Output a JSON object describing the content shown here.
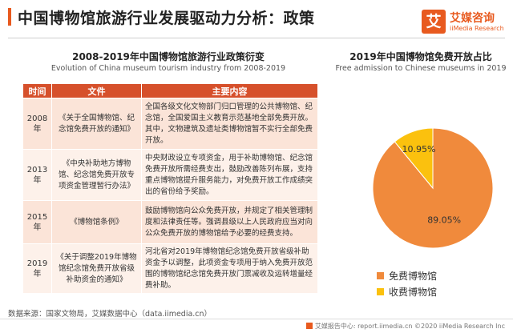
{
  "header": {
    "title": "中国博物馆旅游行业发展驱动力分析：政策",
    "logo_mark": "艾",
    "logo_cn": "艾媒咨询",
    "logo_en": "iiMedia Research"
  },
  "table_section": {
    "title": "2008-2019年中国博物馆旅游行业政策衍变",
    "subtitle": "Evolution of China museum tourism industry from 2008-2019",
    "headers": [
      "时间",
      "文件",
      "主要内容"
    ],
    "rows": [
      {
        "year": "2008年",
        "file": "《关于全国博物馆、纪念馆免费开放的通知》",
        "content": "全国各级文化文物部门归口管理的公共博物馆、纪念馆，全国爱国主义教育示范基地全部免费开放。其中，文物建筑及遗址类博物馆暂不实行全部免费开放。"
      },
      {
        "year": "2013年",
        "file": "《中央补助地方博物馆、纪念馆免费开放专项资金管理暂行办法》",
        "content": "中央财政设立专项资金，用于补助博物馆、纪念馆免费开放所需经费支出，鼓励改善陈列布展，支持重点博物馆提升服务能力，对免费开放工作成绩突出的省份给予奖励。"
      },
      {
        "year": "2015年",
        "file": "《博物馆条例》",
        "content": "鼓励博物馆向公众免费开放，并规定了相关管理制度和法律责任等。强调县级以上人民政府应当对向公众免费开放的博物馆给予必要的经费支持。"
      },
      {
        "year": "2019年",
        "file": "《关于调整2019年博物馆纪念馆免费开放省级补助资金的通知》",
        "content": "河北省对2019年博物馆纪念馆免费开放省级补助资金予以调整，此项资金专项用于纳入免费开放范围的博物馆纪念馆免费开放门票减收及运转增量经费补助。"
      }
    ]
  },
  "source": "数据来源：国家文物局，艾媒数据中心（data.iimedia.cn）",
  "footer": "艾媒报告中心: report.iimedia.cn ©2020  iiMedia Research  Inc",
  "chart_data": {
    "type": "pie",
    "title": "2019年中国博物馆免费开放占比",
    "subtitle": "Free admission to Chinese museums in 2019",
    "categories": [
      "免费博物馆",
      "收费博物馆"
    ],
    "values": [
      89.05,
      10.95
    ],
    "labels": [
      "89.05%",
      "10.95%"
    ],
    "colors": [
      "#f08a3c",
      "#fbc10e"
    ],
    "legend_position": "bottom"
  }
}
